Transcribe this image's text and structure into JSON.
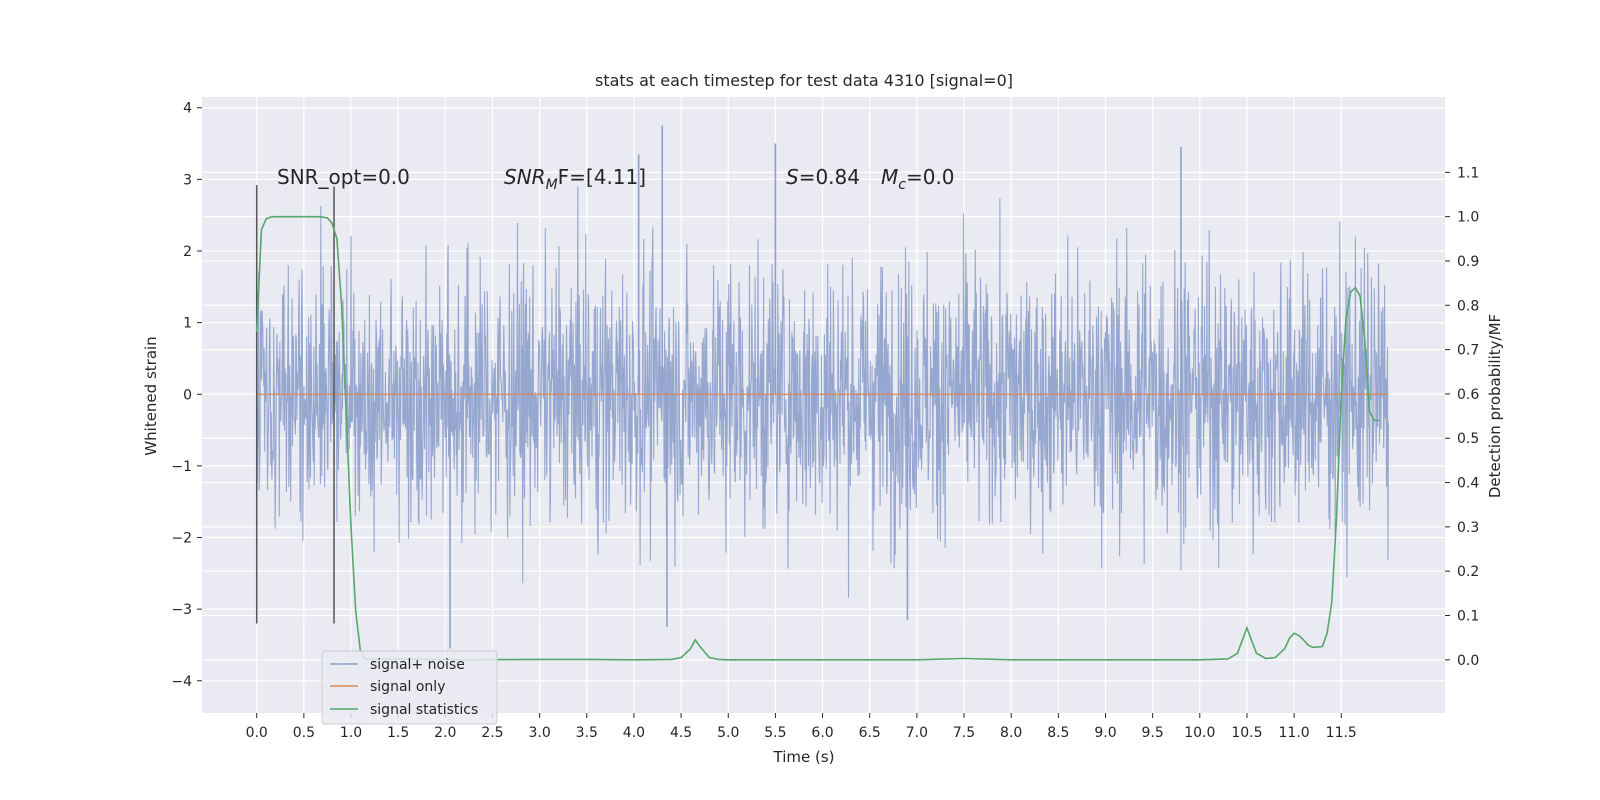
{
  "chart_data": {
    "type": "line",
    "title": "stats at each timestep for test data 4310 [signal=0]",
    "xlabel": "Time (s)",
    "ylabel": "Whitened strain",
    "y2label": "Detection probability/MF",
    "xlim": [
      -0.58,
      12.6
    ],
    "ylim": [
      -4.45,
      4.15
    ],
    "y2lim": [
      -0.12,
      1.27
    ],
    "grid": true,
    "x_ticks": [
      "0.0",
      "0.5",
      "1.0",
      "1.5",
      "2.0",
      "2.5",
      "3.0",
      "3.5",
      "4.0",
      "4.5",
      "5.0",
      "5.5",
      "6.0",
      "6.5",
      "7.0",
      "7.5",
      "8.0",
      "8.5",
      "9.0",
      "9.5",
      "10.0",
      "10.5",
      "11.0",
      "11.5"
    ],
    "y_ticks": [
      "4",
      "3",
      "2",
      "1",
      "0",
      "−1",
      "−2",
      "−3",
      "−4"
    ],
    "y2_ticks": [
      "1.1",
      "1.0",
      "0.9",
      "0.8",
      "0.7",
      "0.6",
      "0.5",
      "0.4",
      "0.3",
      "0.2",
      "0.1",
      "0.0"
    ],
    "annotations": {
      "snr_opt": "SNR_opt=0.0",
      "snr_mf_main": "SNR",
      "snr_mf_sub": "M",
      "snr_mf_rest": "F=[4.11]",
      "s_var": "S",
      "s_value": "=0.84",
      "mc_var": "M",
      "mc_sub": "c",
      "mc_value": "=0.0"
    },
    "legend": {
      "placement": "lower-left",
      "entries": [
        "signal+ noise",
        "signal only",
        "signal statistics"
      ]
    },
    "series": [
      {
        "name": "signal+ noise",
        "color": "#8da0cb",
        "description_range": [
          0.0,
          12.0
        ],
        "noise_amplitude_typical": 1.5,
        "spikes": [
          {
            "x": 4.3,
            "y": 3.75
          },
          {
            "x": 5.5,
            "y": 3.5
          },
          {
            "x": 4.05,
            "y": 3.35
          },
          {
            "x": 9.8,
            "y": 3.45
          },
          {
            "x": 2.05,
            "y": -3.55
          },
          {
            "x": 4.35,
            "y": -3.25
          },
          {
            "x": 6.9,
            "y": -3.15
          }
        ]
      },
      {
        "name": "signal only",
        "color": "#dd8452",
        "x": [
          0.0,
          12.0
        ],
        "y": [
          0.0,
          0.0
        ]
      },
      {
        "name": "signal statistics",
        "color": "#55a868",
        "axis": "right",
        "x": [
          0.0,
          0.05,
          0.1,
          0.15,
          0.2,
          0.3,
          0.4,
          0.5,
          0.6,
          0.65,
          0.7,
          0.75,
          0.8,
          0.85,
          0.9,
          0.95,
          1.0,
          1.05,
          1.1,
          1.15,
          1.2,
          1.5,
          2.0,
          3.0,
          3.5,
          4.0,
          4.4,
          4.5,
          4.6,
          4.65,
          4.7,
          4.8,
          4.9,
          5.0,
          6.0,
          7.0,
          7.5,
          8.0,
          9.0,
          10.0,
          10.3,
          10.4,
          10.5,
          10.6,
          10.7,
          10.8,
          10.9,
          10.95,
          11.0,
          11.05,
          11.1,
          11.15,
          11.2,
          11.3,
          11.35,
          11.4,
          11.45,
          11.5,
          11.55,
          11.6,
          11.65,
          11.7,
          11.75,
          11.8,
          11.85,
          11.9
        ],
        "y": [
          0.74,
          0.97,
          0.995,
          0.999,
          1.0,
          1.0,
          1.0,
          1.0,
          1.0,
          1.0,
          0.999,
          0.997,
          0.985,
          0.95,
          0.8,
          0.55,
          0.3,
          0.11,
          0.02,
          0.003,
          0.001,
          0.002,
          0.0,
          0.001,
          0.001,
          0.0,
          0.001,
          0.005,
          0.025,
          0.045,
          0.03,
          0.005,
          0.001,
          0.0,
          0.0,
          0.0,
          0.003,
          0.0,
          0.0,
          0.0,
          0.002,
          0.015,
          0.072,
          0.015,
          0.003,
          0.005,
          0.025,
          0.048,
          0.06,
          0.055,
          0.045,
          0.033,
          0.028,
          0.03,
          0.06,
          0.13,
          0.32,
          0.6,
          0.77,
          0.83,
          0.84,
          0.82,
          0.72,
          0.56,
          0.54,
          0.54
        ]
      }
    ],
    "vertical_markers": [
      {
        "x": 0.0,
        "y_range": [
          -3.2,
          2.92
        ]
      },
      {
        "x": 0.82,
        "y_range": [
          -3.2,
          2.9
        ]
      }
    ]
  }
}
